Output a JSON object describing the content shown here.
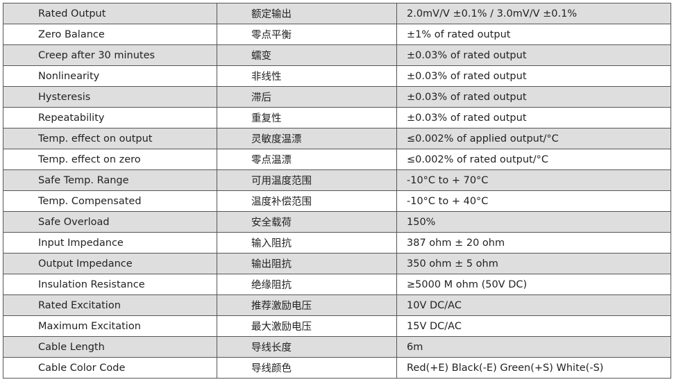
{
  "rows": [
    {
      "en": "Rated Output",
      "zh": "额定输出",
      "value": "2.0mV/V ±0.1%  /  3.0mV/V ±0.1%"
    },
    {
      "en": "Zero Balance",
      "zh": "零点平衡",
      "value": "±1% of rated output"
    },
    {
      "en": "Creep after 30 minutes",
      "zh": "蠕变",
      "value": "±0.03% of rated output"
    },
    {
      "en": "Nonlinearity",
      "zh": "非线性",
      "value": "±0.03% of rated output"
    },
    {
      "en": "Hysteresis",
      "zh": "滞后",
      "value": "±0.03% of rated output"
    },
    {
      "en": "Repeatability",
      "zh": "重复性",
      "value": "±0.03% of rated output"
    },
    {
      "en": "Temp. effect on output",
      "zh": "灵敏度温漂",
      "value": "≤0.002% of applied output/°C"
    },
    {
      "en": "Temp. effect on zero",
      "zh": "零点温漂",
      "value": "≤0.002% of rated output/°C"
    },
    {
      "en": "Safe Temp. Range",
      "zh": "可用温度范围",
      "value": "-10°C to + 70°C"
    },
    {
      "en": "Temp. Compensated",
      "zh": "温度补偿范围",
      "value": "-10°C to + 40°C"
    },
    {
      "en": "Safe Overload",
      "zh": "安全载荷",
      "value": "150%"
    },
    {
      "en": "Input Impedance",
      "zh": "输入阻抗",
      "value": "387 ohm ± 20 ohm"
    },
    {
      "en": "Output Impedance",
      "zh": "输出阻抗",
      "value": "350 ohm ± 5 ohm"
    },
    {
      "en": "Insulation Resistance",
      "zh": "绝缘阻抗",
      "value": "≥5000 M ohm (50V DC)"
    },
    {
      "en": "Rated Excitation",
      "zh": "推荐激励电压",
      "value": "10V DC/AC"
    },
    {
      "en": "Maximum Excitation",
      "zh": "最大激励电压",
      "value": "15V DC/AC"
    },
    {
      "en": "Cable Length",
      "zh": "导线长度",
      "value": "6m"
    },
    {
      "en": "Cable Color Code",
      "zh": "导线颜色",
      "value": "Red(+E) Black(-E) Green(+S) White(-S)"
    }
  ]
}
